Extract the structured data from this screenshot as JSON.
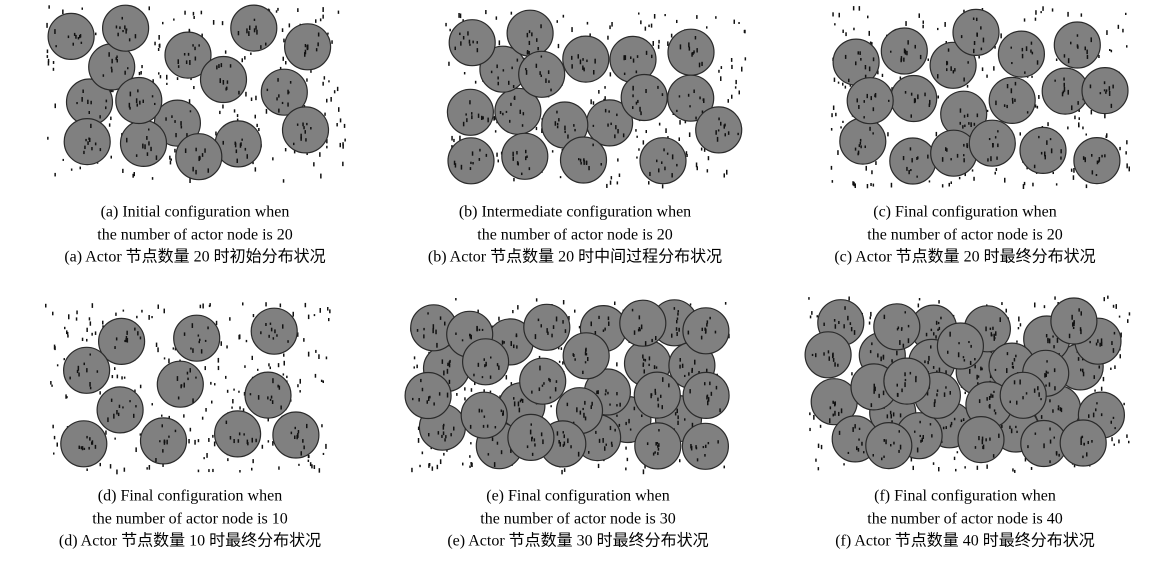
{
  "panels": [
    {
      "caption_en": [
        "(a) Initial configuration when",
        "the number of actor node is 20"
      ],
      "caption_zh": "(a) Actor 节点数量 20 时初始分布状况"
    },
    {
      "caption_en": [
        "(b) Intermediate configuration when",
        "the number of actor node is 20"
      ],
      "caption_zh": "(b) Actor 节点数量 20 时中间过程分布状况"
    },
    {
      "caption_en": [
        "(c) Final configuration when",
        "the number of actor node is 20"
      ],
      "caption_zh": "(c) Actor 节点数量 20 时最终分布状况"
    },
    {
      "caption_en": [
        "(d) Final configuration when",
        "the number of actor node is 10"
      ],
      "caption_zh": "(d) Actor 节点数量 10 时最终分布状况"
    },
    {
      "caption_en": [
        "(e) Final configuration when",
        "the number of actor node is 30"
      ],
      "caption_zh": "(e) Actor 节点数量 30 时最终分布状况"
    },
    {
      "caption_en": [
        "(f) Final configuration when",
        "the number of actor node is 40"
      ],
      "caption_zh": "(f) Actor 节点数量 40 时最终分布状况"
    }
  ]
}
